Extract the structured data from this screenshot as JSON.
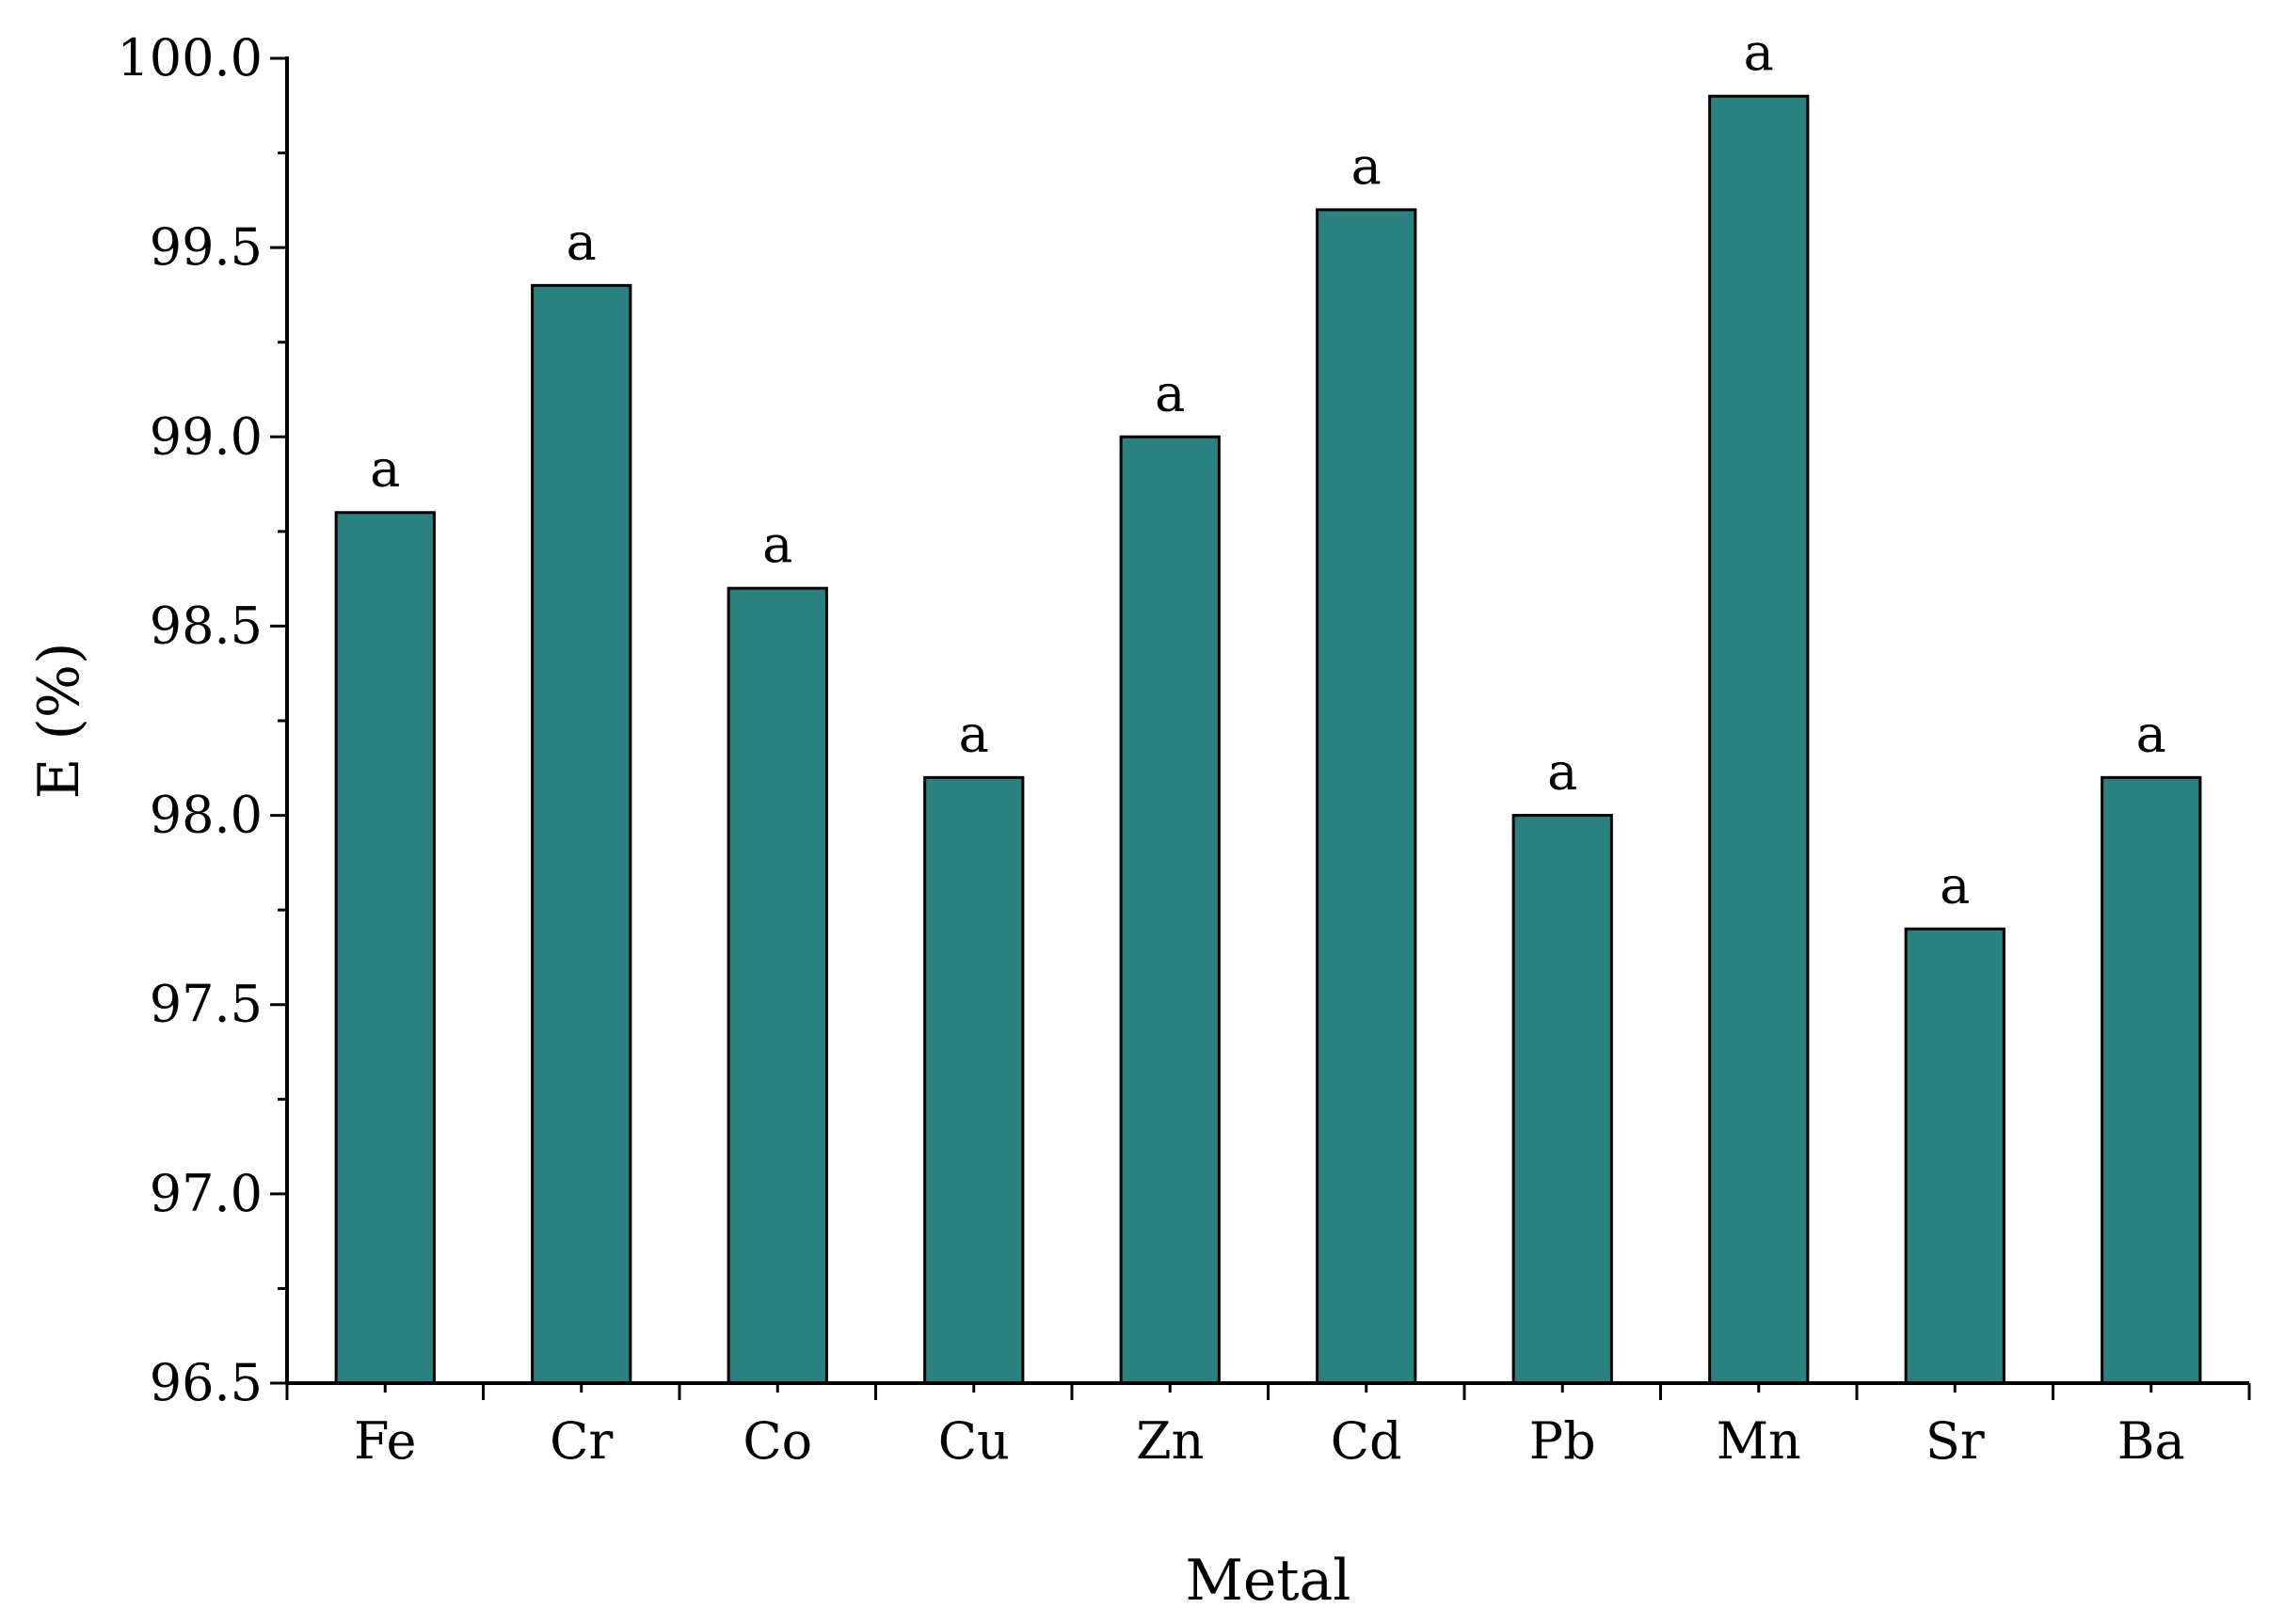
{
  "chart_data": {
    "type": "bar",
    "categories": [
      "Fe",
      "Cr",
      "Co",
      "Cu",
      "Zn",
      "Cd",
      "Pb",
      "Mn",
      "Sr",
      "Ba"
    ],
    "values": [
      98.8,
      99.4,
      98.6,
      98.1,
      99.0,
      99.6,
      98.0,
      99.9,
      97.7,
      98.1
    ],
    "data_labels": [
      "a",
      "a",
      "a",
      "a",
      "a",
      "a",
      "a",
      "a",
      "a",
      "a"
    ],
    "xlabel": "Metal",
    "ylabel": "E (%)",
    "ylim": [
      96.5,
      100.0
    ],
    "yticks": [
      "96.5",
      "97.0",
      "97.5",
      "98.0",
      "98.5",
      "99.0",
      "99.5",
      "100.0"
    ],
    "grid": false,
    "bar_color": "#2a8280"
  }
}
